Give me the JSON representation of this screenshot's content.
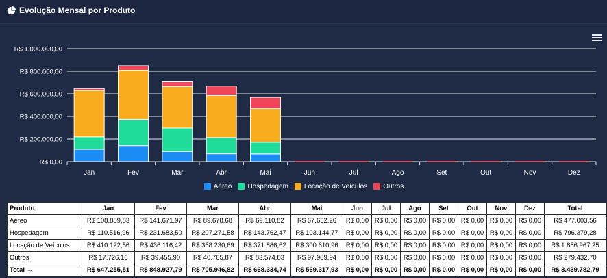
{
  "header": {
    "title": "Evolução Mensal por Produto"
  },
  "colors": {
    "aereo": "#1e8cf5",
    "hospedagem": "#1fdc9a",
    "locacao": "#f9ad1e",
    "outros": "#f04559",
    "grid": "#e6e9f0",
    "axis_text": "#ffffff"
  },
  "chart_data": {
    "type": "bar",
    "stacked": true,
    "categories": [
      "Jan",
      "Fev",
      "Mar",
      "Abr",
      "Mai",
      "Jun",
      "Jul",
      "Ago",
      "Set",
      "Out",
      "Nov",
      "Dez"
    ],
    "series": [
      {
        "name": "Aéreo",
        "color": "#1e8cf5",
        "values": [
          108889.83,
          141671.97,
          89678.68,
          69110.82,
          67652.26,
          0,
          0,
          0,
          0,
          0,
          0,
          0
        ]
      },
      {
        "name": "Hospedagem",
        "color": "#1fdc9a",
        "values": [
          110516.96,
          231683.5,
          207271.58,
          143762.47,
          103144.77,
          0,
          0,
          0,
          0,
          0,
          0,
          0
        ]
      },
      {
        "name": "Locação de Veículos",
        "color": "#f9ad1e",
        "values": [
          410122.56,
          436116.42,
          368230.69,
          371886.62,
          300610.96,
          0,
          0,
          0,
          0,
          0,
          0,
          0
        ]
      },
      {
        "name": "Outros",
        "color": "#f04559",
        "values": [
          17726.16,
          39455.9,
          40765.87,
          83574.83,
          97909.94,
          0,
          0,
          0,
          0,
          0,
          0,
          0
        ]
      }
    ],
    "ylim": [
      0,
      1000000
    ],
    "yticks": [
      0,
      200000,
      400000,
      600000,
      800000,
      1000000
    ],
    "ytick_labels": [
      "R$ 0,00",
      "R$ 200.000,00",
      "R$ 400.000,00",
      "R$ 600.000,00",
      "R$ 800.000,00",
      "R$ 1.000.000,00"
    ],
    "grid": true,
    "legend_position": "bottom"
  },
  "legend": [
    "Aéreo",
    "Hospedagem",
    "Locação de Veículos",
    "Outros"
  ],
  "table": {
    "headers": [
      "Produto",
      "Jan",
      "Fev",
      "Mar",
      "Abr",
      "Mai",
      "Jun",
      "Jul",
      "Ago",
      "Set",
      "Out",
      "Nov",
      "Dez",
      "Total"
    ],
    "rows": [
      [
        "Aéreo",
        "R$ 108.889,83",
        "R$ 141.671,97",
        "R$ 89.678,68",
        "R$ 69.110,82",
        "R$ 67.652,26",
        "R$ 0,00",
        "R$ 0,00",
        "R$ 0,00",
        "R$ 0,00",
        "R$ 0,00",
        "R$ 0,00",
        "R$ 0,00",
        "R$ 477.003,56"
      ],
      [
        "Hospedagem",
        "R$ 110.516,96",
        "R$ 231.683,50",
        "R$ 207.271,58",
        "R$ 143.762,47",
        "R$ 103.144,77",
        "R$ 0,00",
        "R$ 0,00",
        "R$ 0,00",
        "R$ 0,00",
        "R$ 0,00",
        "R$ 0,00",
        "R$ 0,00",
        "R$ 796.379,28"
      ],
      [
        "Locação de Veículos",
        "R$ 410.122,56",
        "R$ 436.116,42",
        "R$ 368.230,69",
        "R$ 371.886,62",
        "R$ 300.610,96",
        "R$ 0,00",
        "R$ 0,00",
        "R$ 0,00",
        "R$ 0,00",
        "R$ 0,00",
        "R$ 0,00",
        "R$ 0,00",
        "R$ 1.886.967,25"
      ],
      [
        "Outros",
        "R$ 17.726,16",
        "R$ 39.455,90",
        "R$ 40.765,87",
        "R$ 83.574,83",
        "R$ 97.909,94",
        "R$ 0,00",
        "R$ 0,00",
        "R$ 0,00",
        "R$ 0,00",
        "R$ 0,00",
        "R$ 0,00",
        "R$ 0,00",
        "R$ 279.432,70"
      ]
    ],
    "total_row": [
      "Total →",
      "R$ 647.255,51",
      "R$ 848.927,79",
      "R$ 705.946,82",
      "R$ 668.334,74",
      "R$ 569.317,93",
      "R$ 0,00",
      "R$ 0,00",
      "R$ 0,00",
      "R$ 0,00",
      "R$ 0,00",
      "R$ 0,00",
      "R$ 0,00",
      "R$ 3.439.782,79"
    ]
  }
}
